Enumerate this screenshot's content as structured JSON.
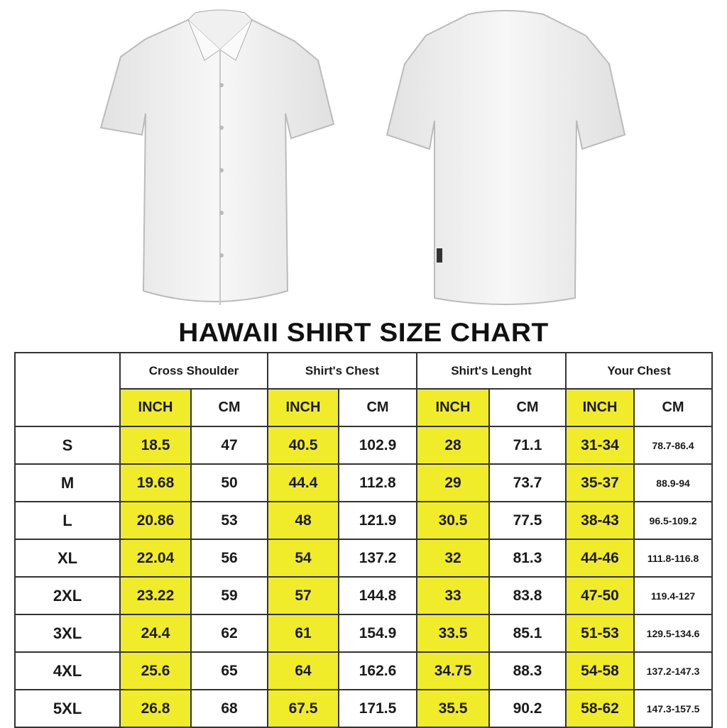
{
  "title": "HAWAII SHIRT SIZE CHART",
  "colors": {
    "highlight": "#f1ec2a",
    "border": "#333333",
    "shirt": "#f4f4f4"
  },
  "images": {
    "front": "white-shirt-front",
    "back": "white-shirt-back"
  },
  "groups": [
    "Cross Shoulder",
    "Shirt's Chest",
    "Shirt's Lenght",
    "Your Chest"
  ],
  "units": [
    "INCH",
    "CM",
    "INCH",
    "CM",
    "INCH",
    "CM",
    "INCH",
    "CM"
  ],
  "rows": [
    {
      "size": "S",
      "values": [
        "18.5",
        "47",
        "40.5",
        "102.9",
        "28",
        "71.1",
        "31-34",
        "78.7-86.4"
      ]
    },
    {
      "size": "M",
      "values": [
        "19.68",
        "50",
        "44.4",
        "112.8",
        "29",
        "73.7",
        "35-37",
        "88.9-94"
      ]
    },
    {
      "size": "L",
      "values": [
        "20.86",
        "53",
        "48",
        "121.9",
        "30.5",
        "77.5",
        "38-43",
        "96.5-109.2"
      ]
    },
    {
      "size": "XL",
      "values": [
        "22.04",
        "56",
        "54",
        "137.2",
        "32",
        "81.3",
        "44-46",
        "111.8-116.8"
      ]
    },
    {
      "size": "2XL",
      "values": [
        "23.22",
        "59",
        "57",
        "144.8",
        "33",
        "83.8",
        "47-50",
        "119.4-127"
      ]
    },
    {
      "size": "3XL",
      "values": [
        "24.4",
        "62",
        "61",
        "154.9",
        "33.5",
        "85.1",
        "51-53",
        "129.5-134.6"
      ]
    },
    {
      "size": "4XL",
      "values": [
        "25.6",
        "65",
        "64",
        "162.6",
        "34.75",
        "88.3",
        "54-58",
        "137.2-147.3"
      ]
    },
    {
      "size": "5XL",
      "values": [
        "26.8",
        "68",
        "67.5",
        "171.5",
        "35.5",
        "90.2",
        "58-62",
        "147.3-157.5"
      ]
    }
  ]
}
